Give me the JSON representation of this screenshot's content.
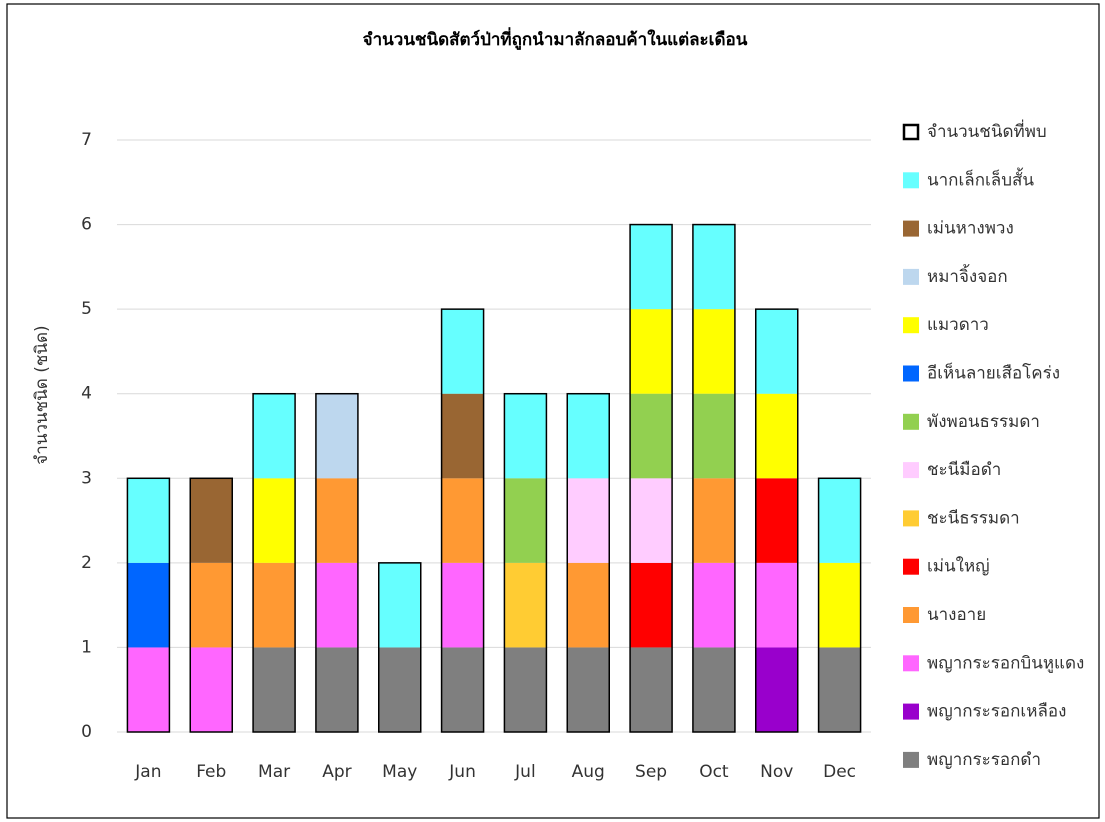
{
  "chart_data": {
    "type": "stacked_bar",
    "title": "จำนวนชนิดสัตว์ป่าที่ถูกนำมาลักลอบค้าในแต่ละเดือน",
    "y_label": "จำนวนชนิด (ชนิด)",
    "categories": [
      "Jan",
      "Feb",
      "Mar",
      "Apr",
      "May",
      "Jun",
      "Jul",
      "Aug",
      "Sep",
      "Oct",
      "Nov",
      "Dec"
    ],
    "ylim": [
      0,
      7
    ],
    "yticks": [
      0,
      1,
      2,
      3,
      4,
      5,
      6,
      7
    ],
    "grid": true,
    "legend": "right",
    "total": {
      "name": "จำนวนชนิดที่พบ",
      "color": "#000000",
      "values": [
        3,
        3,
        4,
        4,
        2,
        5,
        4,
        4,
        6,
        6,
        5,
        3
      ]
    },
    "series": [
      {
        "name": "พญากระรอกดำ",
        "color": "#7f7f7f",
        "values": [
          0,
          0,
          1,
          1,
          1,
          1,
          1,
          1,
          1,
          1,
          0,
          1
        ]
      },
      {
        "name": "พญากระรอกเหลือง",
        "color": "#9900cc",
        "values": [
          0,
          0,
          0,
          0,
          0,
          0,
          0,
          0,
          0,
          0,
          1,
          0
        ]
      },
      {
        "name": "พญากระรอกบินหูแดง",
        "color": "#ff66ff",
        "values": [
          1,
          1,
          0,
          1,
          0,
          1,
          0,
          0,
          0,
          1,
          1,
          0
        ]
      },
      {
        "name": "นางอาย",
        "color": "#ff9933",
        "values": [
          0,
          1,
          1,
          1,
          0,
          1,
          0,
          1,
          0,
          1,
          0,
          0
        ]
      },
      {
        "name": "เม่นใหญ่",
        "color": "#ff0000",
        "values": [
          0,
          0,
          0,
          0,
          0,
          0,
          0,
          0,
          1,
          0,
          1,
          0
        ]
      },
      {
        "name": "ชะนีธรรมดา",
        "color": "#ffcc33",
        "values": [
          0,
          0,
          0,
          0,
          0,
          0,
          1,
          0,
          0,
          0,
          0,
          0
        ]
      },
      {
        "name": "ชะนีมือดำ",
        "color": "#ffccff",
        "values": [
          0,
          0,
          0,
          0,
          0,
          0,
          0,
          1,
          1,
          0,
          0,
          0
        ]
      },
      {
        "name": "พังพอนธรรมดา",
        "color": "#92d050",
        "values": [
          0,
          0,
          0,
          0,
          0,
          0,
          1,
          0,
          1,
          1,
          0,
          0
        ]
      },
      {
        "name": "อีเห็นลายเสือโคร่ง",
        "color": "#0066ff",
        "values": [
          1,
          0,
          0,
          0,
          0,
          0,
          0,
          0,
          0,
          0,
          0,
          0
        ]
      },
      {
        "name": "แมวดาว",
        "color": "#ffff00",
        "values": [
          0,
          0,
          1,
          0,
          0,
          0,
          0,
          0,
          1,
          1,
          1,
          1
        ]
      },
      {
        "name": "หมาจิ้งจอก",
        "color": "#bdd7ee",
        "values": [
          0,
          0,
          0,
          1,
          0,
          0,
          0,
          0,
          0,
          0,
          0,
          0
        ]
      },
      {
        "name": "เม่นหางพวง",
        "color": "#996633",
        "values": [
          0,
          1,
          0,
          0,
          0,
          1,
          0,
          0,
          0,
          0,
          0,
          0
        ]
      },
      {
        "name": "นากเล็กเล็บสั้น",
        "color": "#66ffff",
        "values": [
          1,
          0,
          1,
          0,
          1,
          1,
          1,
          1,
          1,
          1,
          1,
          1
        ]
      }
    ]
  }
}
